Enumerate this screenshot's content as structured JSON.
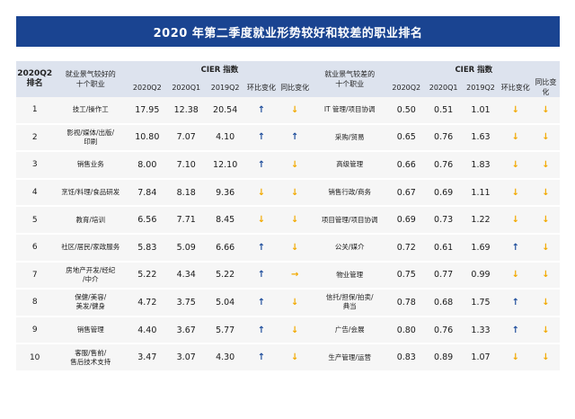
{
  "title": "2020 年第二季度就业形势较好和较差的职业排名",
  "colors": {
    "up": "#1f4e9c",
    "down": "#f2a900",
    "flat": "#f2a900"
  },
  "header": {
    "rank_line1": "2020Q2",
    "rank_line2": "排名",
    "good_occ_line1": "就业景气较好的",
    "good_occ_line2": "十个职业",
    "cier_label": "CIER 指数",
    "cier_label_right": "CIER 指数",
    "bad_occ_line1": "就业景气较差的",
    "bad_occ_line2": "十个职业",
    "cols_left": [
      "2020Q2",
      "2020Q1",
      "2019Q2",
      "环比变化",
      "同比变化"
    ],
    "cols_right": [
      "2020Q2",
      "2020Q1",
      "2019Q2",
      "环比变化",
      "同比变化"
    ]
  },
  "rows": [
    {
      "rank": "1",
      "good": [
        "技工/操作工"
      ],
      "g": [
        "17.95",
        "12.38",
        "20.54"
      ],
      "g_qoq": "up",
      "g_yoy": "down",
      "bad": [
        "IT 管理/项目协调"
      ],
      "b": [
        "0.50",
        "0.51",
        "1.01"
      ],
      "b_qoq": "down",
      "b_yoy": "down"
    },
    {
      "rank": "2",
      "good": [
        "影视/媒体/出版/",
        "印刷"
      ],
      "g": [
        "10.80",
        "7.07",
        "4.10"
      ],
      "g_qoq": "up",
      "g_yoy": "up",
      "bad": [
        "采购/贸易"
      ],
      "b": [
        "0.65",
        "0.76",
        "1.63"
      ],
      "b_qoq": "down",
      "b_yoy": "down"
    },
    {
      "rank": "3",
      "good": [
        "销售业务"
      ],
      "g": [
        "8.00",
        "7.10",
        "12.10"
      ],
      "g_qoq": "up",
      "g_yoy": "down",
      "bad": [
        "高级管理"
      ],
      "b": [
        "0.66",
        "0.76",
        "1.83"
      ],
      "b_qoq": "down",
      "b_yoy": "down"
    },
    {
      "rank": "4",
      "good": [
        "烹饪/料理/食品研发"
      ],
      "g": [
        "7.84",
        "8.18",
        "9.36"
      ],
      "g_qoq": "down",
      "g_yoy": "down",
      "bad": [
        "销售行政/商务"
      ],
      "b": [
        "0.67",
        "0.69",
        "1.11"
      ],
      "b_qoq": "down",
      "b_yoy": "down"
    },
    {
      "rank": "5",
      "good": [
        "教育/培训"
      ],
      "g": [
        "6.56",
        "7.71",
        "8.45"
      ],
      "g_qoq": "down",
      "g_yoy": "down",
      "bad": [
        "项目管理/项目协调"
      ],
      "b": [
        "0.69",
        "0.73",
        "1.22"
      ],
      "b_qoq": "down",
      "b_yoy": "down"
    },
    {
      "rank": "6",
      "good": [
        "社区/居民/家政服务"
      ],
      "g": [
        "5.83",
        "5.09",
        "6.66"
      ],
      "g_qoq": "up",
      "g_yoy": "down",
      "bad": [
        "公关/媒介"
      ],
      "b": [
        "0.72",
        "0.61",
        "1.69"
      ],
      "b_qoq": "up",
      "b_yoy": "down"
    },
    {
      "rank": "7",
      "good": [
        "房地产开发/经纪",
        "/中介"
      ],
      "g": [
        "5.22",
        "4.34",
        "5.22"
      ],
      "g_qoq": "up",
      "g_yoy": "flat",
      "bad": [
        "物业管理"
      ],
      "b": [
        "0.75",
        "0.77",
        "0.99"
      ],
      "b_qoq": "down",
      "b_yoy": "down"
    },
    {
      "rank": "8",
      "good": [
        "保健/美容/",
        "美发/健身"
      ],
      "g": [
        "4.72",
        "3.75",
        "5.04"
      ],
      "g_qoq": "up",
      "g_yoy": "down",
      "bad": [
        "信托/担保/拍卖/",
        "典当"
      ],
      "b": [
        "0.78",
        "0.68",
        "1.75"
      ],
      "b_qoq": "up",
      "b_yoy": "down"
    },
    {
      "rank": "9",
      "good": [
        "销售管理"
      ],
      "g": [
        "4.40",
        "3.67",
        "5.77"
      ],
      "g_qoq": "up",
      "g_yoy": "down",
      "bad": [
        "广告/会展"
      ],
      "b": [
        "0.80",
        "0.76",
        "1.33"
      ],
      "b_qoq": "up",
      "b_yoy": "down"
    },
    {
      "rank": "10",
      "good": [
        "客服/售前/",
        "售后技术支持"
      ],
      "g": [
        "3.47",
        "3.07",
        "4.30"
      ],
      "g_qoq": "up",
      "g_yoy": "down",
      "bad": [
        "生产管理/运营"
      ],
      "b": [
        "0.83",
        "0.89",
        "1.07"
      ],
      "b_qoq": "down",
      "b_yoy": "down"
    }
  ]
}
